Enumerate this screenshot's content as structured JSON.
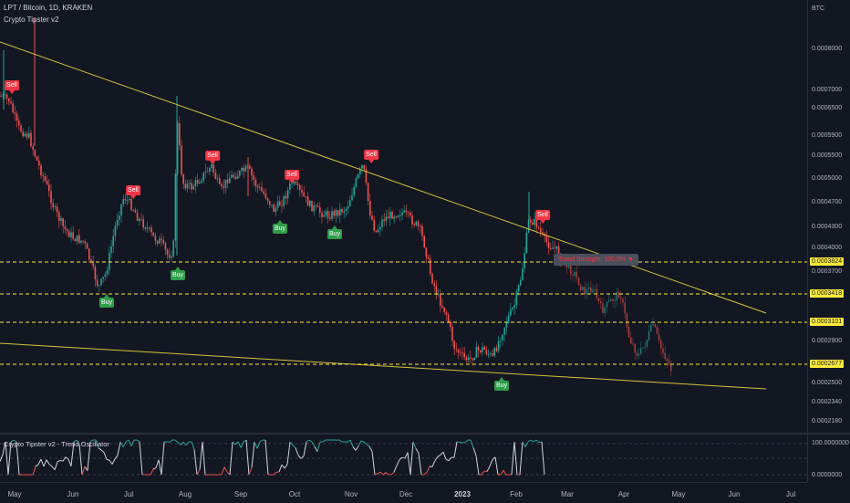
{
  "header": {
    "symbol": "LPT / Bitcoin, 1D, KRAKEN",
    "indicator": "Crypto Tipster v2"
  },
  "price_axis": {
    "currency": "BTC",
    "ticks": [
      "0.0008000",
      "0.0007000",
      "0.0006500",
      "0.0005900",
      "0.0005500",
      "0.0005000",
      "0.0004700",
      "0.0004300",
      "0.0004000",
      "0.0003700",
      "0.0002900",
      "0.0002500",
      "0.0002340",
      "0.0002180"
    ],
    "labels": [
      "0.0003824",
      "0.0003418",
      "0.0003101",
      "0.0002677"
    ]
  },
  "osc": {
    "title": "Crypto Tipster v2 - Trend Oscillator",
    "top_tick": "100.0000000",
    "bottom_tick": "0.0000000"
  },
  "time_axis": [
    "May",
    "Jun",
    "Jul",
    "Aug",
    "Sep",
    "Oct",
    "Nov",
    "Dec",
    "2023",
    "Feb",
    "Mar",
    "Apr",
    "May",
    "Jun",
    "Jul"
  ],
  "signals": {
    "sell": [
      "Sell",
      "Sell",
      "Sell",
      "Sell",
      "Sell",
      "Sell"
    ],
    "buy": [
      "Buy",
      "Buy",
      "Buy",
      "Buy",
      "Buy"
    ]
  },
  "trend_strength": "Trend Strength: 100.0% ▼",
  "colors": {
    "background": "#131722",
    "up": "#26a69a",
    "down": "#ef5350",
    "trendline": "#d4c33a",
    "level": "#ffeb3b"
  }
}
